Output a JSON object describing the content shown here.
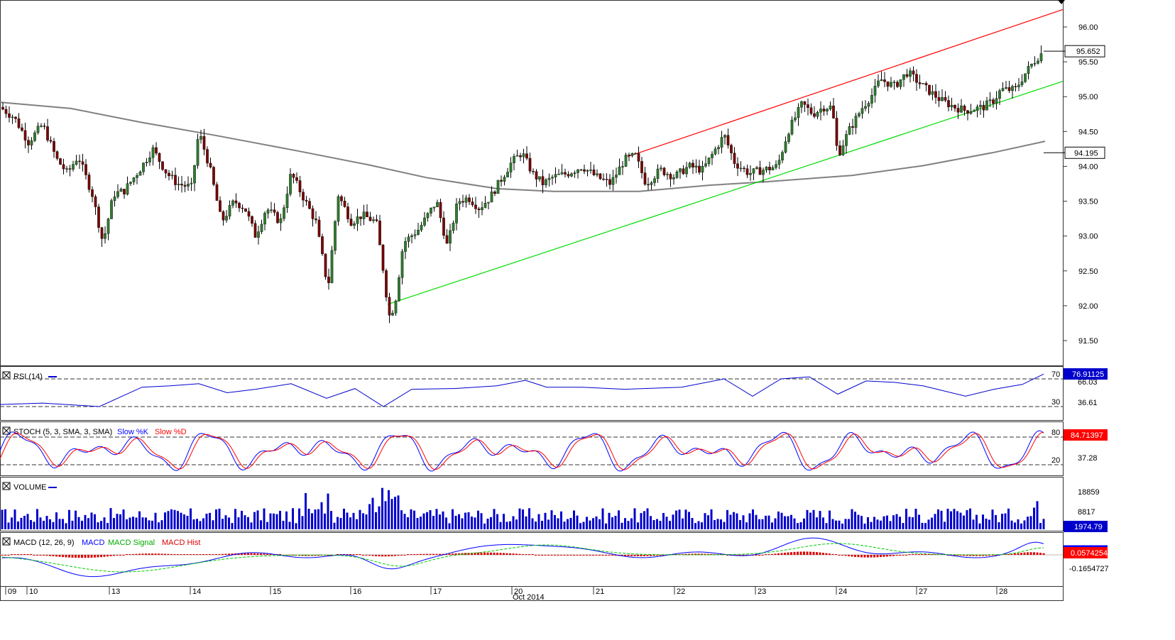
{
  "chart_data": {
    "type": "candlestick",
    "price_axis": {
      "ticks": [
        "96.00",
        "95.50",
        "95.00",
        "94.50",
        "94.00",
        "93.50",
        "93.00",
        "92.50",
        "92.00",
        "91.50"
      ],
      "ylim": [
        91.05,
        96.3
      ]
    },
    "last_price": "95.652",
    "ma_value": "94.195",
    "ma_curve": [
      [
        0,
        94.92
      ],
      [
        100,
        94.83
      ],
      [
        200,
        94.63
      ],
      [
        300,
        94.45
      ],
      [
        420,
        94.22
      ],
      [
        520,
        94.02
      ],
      [
        600,
        93.84
      ],
      [
        700,
        93.68
      ],
      [
        780,
        93.64
      ],
      [
        900,
        93.64
      ],
      [
        1000,
        93.73
      ],
      [
        1080,
        93.78
      ],
      [
        1200,
        93.87
      ],
      [
        1300,
        94.01
      ],
      [
        1400,
        94.2
      ],
      [
        1472,
        94.36
      ]
    ],
    "channel": {
      "upper": [
        [
          884,
          94.14
        ],
        [
          1497,
          96.25
        ]
      ],
      "lower": [
        [
          546,
          92.02
        ],
        [
          1497,
          95.22
        ]
      ]
    },
    "date_axis": {
      "labels": [
        "09",
        "10",
        "13",
        "14",
        "15",
        "16",
        "17",
        "20",
        "21",
        "22",
        "23",
        "24",
        "27",
        "28"
      ],
      "month_label": "Oct 2014"
    },
    "panels": {
      "rsi": {
        "title": "RSI (14)",
        "levels": [
          "70",
          "30"
        ],
        "ticks": [
          "66.03",
          "36.61"
        ],
        "value": "76.91125",
        "curve": [
          [
            0,
            33
          ],
          [
            60,
            35
          ],
          [
            140,
            30
          ],
          [
            200,
            58
          ],
          [
            240,
            60
          ],
          [
            280,
            63
          ],
          [
            320,
            50
          ],
          [
            360,
            55
          ],
          [
            410,
            63
          ],
          [
            460,
            42
          ],
          [
            500,
            56
          ],
          [
            540,
            30
          ],
          [
            580,
            55
          ],
          [
            640,
            56
          ],
          [
            700,
            60
          ],
          [
            740,
            68
          ],
          [
            770,
            58
          ],
          [
            820,
            58
          ],
          [
            880,
            55
          ],
          [
            960,
            58
          ],
          [
            1020,
            70
          ],
          [
            1060,
            45
          ],
          [
            1100,
            70
          ],
          [
            1140,
            73
          ],
          [
            1180,
            48
          ],
          [
            1220,
            67
          ],
          [
            1260,
            65
          ],
          [
            1300,
            60
          ],
          [
            1360,
            45
          ],
          [
            1400,
            55
          ],
          [
            1440,
            62
          ],
          [
            1470,
            77
          ]
        ]
      },
      "stoch": {
        "title": "STOCH (5, 3, SMA, 3, SMA)",
        "legend": [
          "Slow %K",
          "Slow %D"
        ],
        "levels": [
          "80",
          "20"
        ],
        "ticks": [
          "37.28"
        ],
        "value": "84.71397"
      },
      "volume": {
        "title": "VOLUME",
        "ticks": [
          "18859",
          "8817"
        ],
        "value": "1974.79"
      },
      "macd": {
        "title": "MACD (12, 26, 9)",
        "legend": [
          "MACD",
          "MACD Signal",
          "MACD Hist"
        ],
        "ticks": [
          "-0.1654727"
        ],
        "value": "0.0574254"
      }
    },
    "colors": {
      "up": "#2f7d2f",
      "down": "#7a0000",
      "ma": "#808080",
      "upper_channel": "#ff0000",
      "lower_channel": "#00dd00",
      "rsi": "#0000cc",
      "stoch_k": "#0000ff",
      "stoch_d": "#ff0000",
      "volume": "#0000cc",
      "macd_signal": "#00cc00",
      "macd_hist": "#dd0000"
    }
  }
}
